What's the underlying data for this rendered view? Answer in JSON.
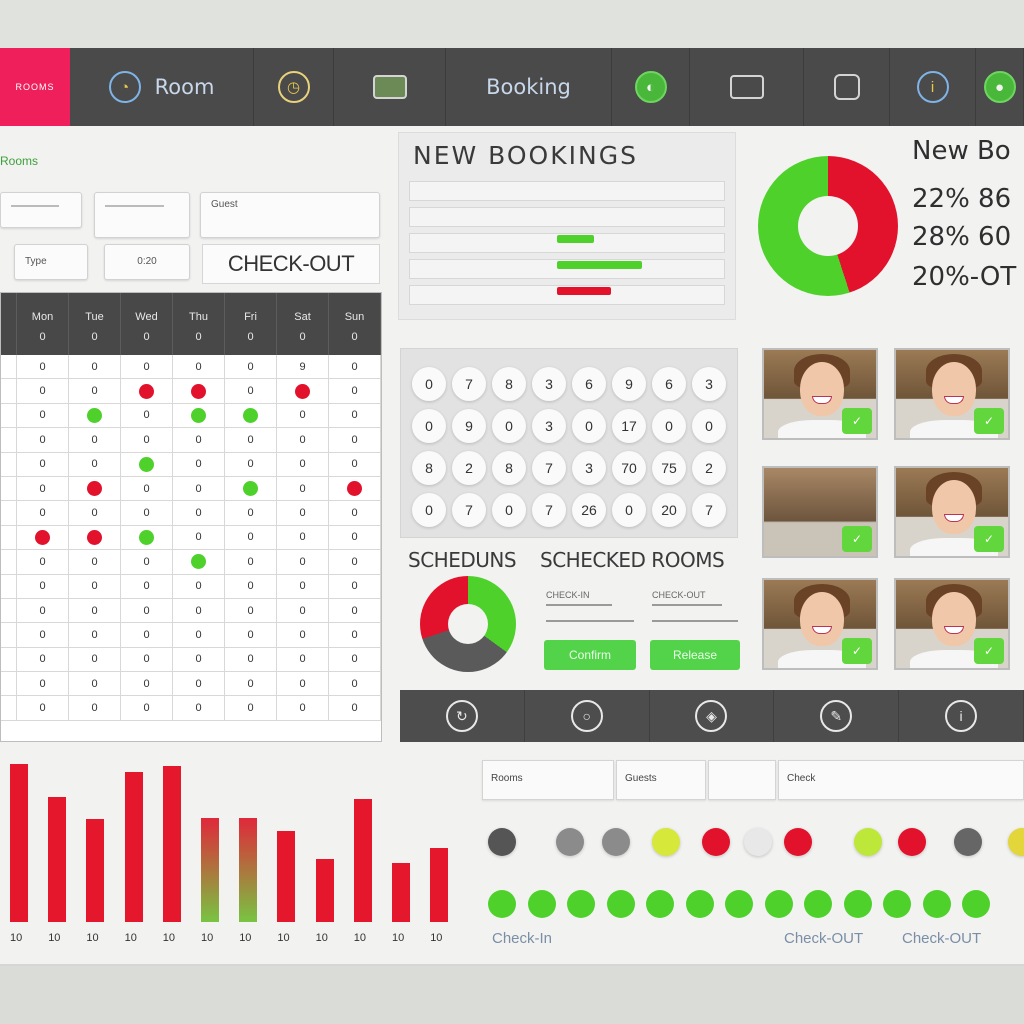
{
  "nav": {
    "brand": "ROOMS",
    "items": [
      {
        "label": "Room",
        "icon": "globe-icon"
      },
      {
        "label": "",
        "icon": "clock-icon"
      },
      {
        "label": "",
        "icon": "screen-icon"
      },
      {
        "label": "Booking",
        "icon": "calendar-icon"
      },
      {
        "label": "",
        "icon": "lock-icon"
      },
      {
        "label": "",
        "icon": "card-icon"
      },
      {
        "label": "",
        "icon": "tablet-icon"
      },
      {
        "label": "",
        "icon": "info-icon"
      },
      {
        "label": "",
        "icon": "user-icon"
      }
    ]
  },
  "left": {
    "title": "Rooms",
    "fields": [
      "",
      "",
      "Guest",
      "Type",
      "0:20"
    ],
    "checkout_label": "CHECK-OUT"
  },
  "grid": {
    "headers": [
      "Mon\n0",
      "Tue\n0",
      "Wed\n0",
      "Thu\n0",
      "Fri\n0",
      "Sat\n0",
      "Sun\n0"
    ],
    "rows": [
      [
        "0",
        "0",
        "0",
        "0",
        "0",
        "9",
        "0"
      ],
      [
        "0",
        "0",
        "R",
        "R",
        "0",
        "R",
        "0"
      ],
      [
        "0",
        "G",
        "0",
        "G",
        "G",
        "0",
        "0"
      ],
      [
        "0",
        "0",
        "0",
        "0",
        "0",
        "0",
        "0"
      ],
      [
        "0",
        "0",
        "G",
        "0",
        "0",
        "0",
        "0"
      ],
      [
        "0",
        "R",
        "0",
        "0",
        "G",
        "0",
        "R"
      ],
      [
        "0",
        "0",
        "0",
        "0",
        "0",
        "0",
        "0"
      ],
      [
        "R",
        "R",
        "G",
        "0",
        "0",
        "0",
        "0"
      ],
      [
        "0",
        "0",
        "0",
        "G",
        "0",
        "0",
        "0"
      ],
      [
        "0",
        "0",
        "0",
        "0",
        "0",
        "0",
        "0"
      ],
      [
        "0",
        "0",
        "0",
        "0",
        "0",
        "0",
        "0"
      ],
      [
        "0",
        "0",
        "0",
        "0",
        "0",
        "0",
        "0"
      ],
      [
        "0",
        "0",
        "0",
        "0",
        "0",
        "0",
        "0"
      ],
      [
        "0",
        "0",
        "0",
        "0",
        "0",
        "0",
        "0"
      ],
      [
        "0",
        "0",
        "0",
        "0",
        "0",
        "0",
        "0"
      ]
    ]
  },
  "new_bookings": {
    "title": "NEW BOOKINGS",
    "bars": [
      {
        "color": "#4fd12c",
        "fraction": 0.11
      },
      {
        "color": "#4fd12c",
        "fraction": 0.25
      },
      {
        "color": "#e3122c",
        "fraction": 0.16
      }
    ]
  },
  "booking_stats": {
    "title": "New Bo",
    "lines": [
      "22% 86",
      "28% 60",
      "20%-OT"
    ],
    "donut": {
      "green_percent": 55,
      "red_percent": 45
    }
  },
  "keypad": {
    "keys": [
      "0",
      "7",
      "8",
      "3",
      "6",
      "9",
      "6",
      "3",
      "0",
      "9",
      "0",
      "3",
      "0",
      "17",
      "0",
      "0",
      "8",
      "2",
      "8",
      "7",
      "3",
      "70",
      "75",
      "2",
      "0",
      "7",
      "0",
      "7",
      "26",
      "0",
      "20",
      "7"
    ]
  },
  "schedules": {
    "title_a": "SCHEDUNS",
    "title_b": "SCHECKED ROOMS",
    "label_a": "CHECK-IN",
    "label_b": "CHECK-OUT",
    "btn_a": "Confirm",
    "btn_b": "Release",
    "donut": {
      "red_percent": 30,
      "green_percent": 35,
      "gray_percent": 35
    }
  },
  "staff": {
    "photos": [
      {
        "badge": "check-icon"
      },
      {
        "badge": "check-icon"
      },
      {
        "badge": "check-icon"
      },
      {
        "badge": "check-icon"
      },
      {
        "badge": "check-icon"
      },
      {
        "badge": "check-icon"
      }
    ]
  },
  "actions": [
    "refresh-icon",
    "circle-icon",
    "tag-icon",
    "edit-icon",
    "info-icon"
  ],
  "chart_data": {
    "type": "bar",
    "categories": [
      "10",
      "10",
      "10",
      "10",
      "10",
      "10",
      "10",
      "10",
      "10",
      "10",
      "10",
      "10"
    ],
    "values": [
      83,
      66,
      54,
      79,
      82,
      55,
      55,
      48,
      33,
      65,
      31,
      39
    ],
    "ylim": [
      0,
      100
    ],
    "title": "",
    "xlabel": "",
    "ylabel": ""
  },
  "bottom": {
    "fields": [
      "Rooms",
      "Guests",
      "",
      "Check"
    ],
    "label_checkin": "Check-In",
    "label_checkout_1": "Check-OUT",
    "label_checkout_2": "Check-OUT",
    "indicator_row1": [
      "#555555",
      "#8b8b8b",
      "#8b8b8b",
      "#d6e83a",
      "#e3122c",
      "#e8e8e8",
      "#e3122c",
      "#bde83a",
      "#e3122c",
      "#666666",
      "#e3d63a"
    ],
    "indicator_row2": [
      "#4fd12c",
      "#4fd12c",
      "#4fd12c",
      "#4fd12c",
      "#4fd12c",
      "#4fd12c",
      "#4fd12c",
      "#4fd12c",
      "#4fd12c",
      "#4fd12c",
      "#4fd12c",
      "#4fd12c",
      "#4fd12c"
    ]
  }
}
